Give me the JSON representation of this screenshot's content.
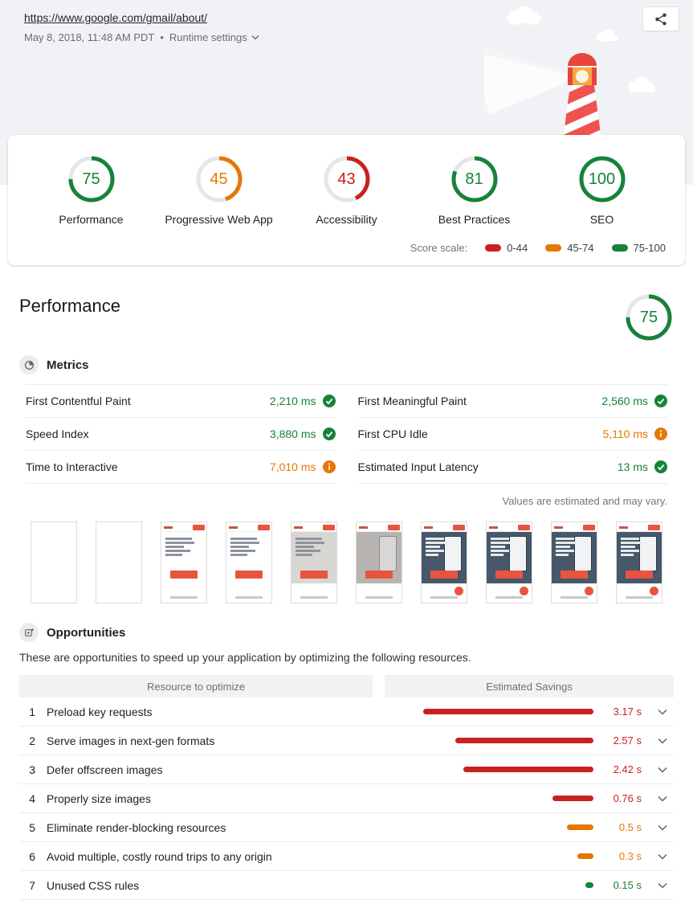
{
  "header": {
    "url": "https://www.google.com/gmail/about/",
    "timestamp": "May 8, 2018, 11:48 AM PDT",
    "separator": "•",
    "runtime_settings_label": "Runtime settings"
  },
  "scores": [
    {
      "label": "Performance",
      "value": 75,
      "level": "pass"
    },
    {
      "label": "Progressive Web App",
      "value": 45,
      "level": "average"
    },
    {
      "label": "Accessibility",
      "value": 43,
      "level": "fail"
    },
    {
      "label": "Best Practices",
      "value": 81,
      "level": "pass"
    },
    {
      "label": "SEO",
      "value": 100,
      "level": "pass"
    }
  ],
  "score_scale": {
    "label": "Score scale:",
    "ranges": [
      {
        "label": "0-44",
        "level": "fail"
      },
      {
        "label": "45-74",
        "level": "average"
      },
      {
        "label": "75-100",
        "level": "pass"
      }
    ]
  },
  "performance": {
    "title": "Performance",
    "score": 75,
    "metrics_title": "Metrics",
    "metrics": [
      {
        "label": "First Contentful Paint",
        "value": "2,210 ms",
        "status": "pass"
      },
      {
        "label": "First Meaningful Paint",
        "value": "2,560 ms",
        "status": "pass"
      },
      {
        "label": "Speed Index",
        "value": "3,880 ms",
        "status": "pass"
      },
      {
        "label": "First CPU Idle",
        "value": "5,110 ms",
        "status": "average"
      },
      {
        "label": "Time to Interactive",
        "value": "7,010 ms",
        "status": "average"
      },
      {
        "label": "Estimated Input Latency",
        "value": "13 ms",
        "status": "pass"
      }
    ],
    "disclaimer": "Values are estimated and may vary.",
    "filmstrip_frames": [
      "blank",
      "blank",
      "text",
      "text",
      "textphoto",
      "photogray",
      "photofab",
      "photofab",
      "photofab",
      "photofab"
    ]
  },
  "opportunities": {
    "title": "Opportunities",
    "description": "These are opportunities to speed up your application by optimizing the following resources.",
    "col_resource": "Resource to optimize",
    "col_savings": "Estimated Savings",
    "max_seconds": 3.17,
    "items": [
      {
        "num": "1",
        "label": "Preload key requests",
        "savings": "3.17 s",
        "seconds": 3.17,
        "level": "fail"
      },
      {
        "num": "2",
        "label": "Serve images in next-gen formats",
        "savings": "2.57 s",
        "seconds": 2.57,
        "level": "fail"
      },
      {
        "num": "3",
        "label": "Defer offscreen images",
        "savings": "2.42 s",
        "seconds": 2.42,
        "level": "fail"
      },
      {
        "num": "4",
        "label": "Properly size images",
        "savings": "0.76 s",
        "seconds": 0.76,
        "level": "fail"
      },
      {
        "num": "5",
        "label": "Eliminate render-blocking resources",
        "savings": "0.5 s",
        "seconds": 0.5,
        "level": "average"
      },
      {
        "num": "6",
        "label": "Avoid multiple, costly round trips to any origin",
        "savings": "0.3 s",
        "seconds": 0.3,
        "level": "average"
      },
      {
        "num": "7",
        "label": "Unused CSS rules",
        "savings": "0.15 s",
        "seconds": 0.15,
        "level": "pass"
      }
    ]
  },
  "colors": {
    "pass": "#178239",
    "average": "#e67700",
    "fail": "#c7221f",
    "gauge_track": "#e4e6e8"
  }
}
